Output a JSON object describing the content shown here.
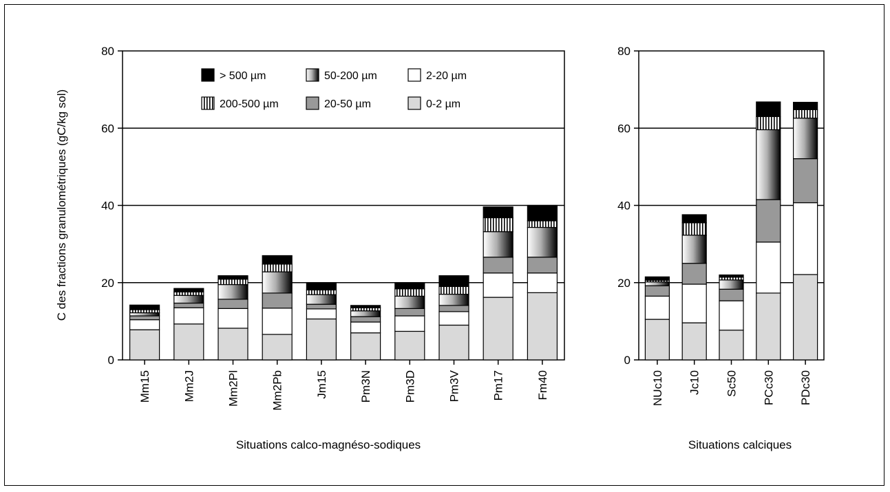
{
  "chart_data": [
    {
      "type": "bar",
      "stacked": true,
      "ylabel": "C des fractions granulométriques (gC/kg sol)",
      "xlabel": "Situations calco-magnéso-sodiques",
      "ylim": [
        0,
        80
      ],
      "yticks": [
        "0",
        "20",
        "40",
        "60",
        "80"
      ],
      "grid": "horizontal",
      "legend_position": "top-center",
      "categories": [
        "Mm15",
        "Mm2J",
        "Mm2Pl",
        "Mm2Pb",
        "Jm15",
        "Pm3N",
        "Pm3D",
        "Pm3V",
        "Pm17",
        "Fm40"
      ],
      "series": [
        {
          "name": "0-2 µm",
          "values": [
            7.8,
            9.3,
            8.2,
            6.6,
            10.6,
            7.0,
            7.4,
            9.0,
            16.2,
            17.4
          ]
        },
        {
          "name": "2-20 µm",
          "values": [
            2.6,
            4.2,
            5.1,
            6.8,
            2.6,
            2.8,
            4.0,
            3.5,
            6.3,
            5.1
          ]
        },
        {
          "name": "20-50 µm",
          "values": [
            1.0,
            1.2,
            2.4,
            3.9,
            1.2,
            1.4,
            1.9,
            1.6,
            4.1,
            4.1
          ]
        },
        {
          "name": "50-200 µm",
          "values": [
            0.8,
            2.0,
            3.8,
            5.5,
            2.5,
            1.5,
            3.2,
            2.9,
            6.6,
            7.7
          ]
        },
        {
          "name": "200-500 µm",
          "values": [
            0.8,
            0.9,
            1.4,
            2.0,
            1.2,
            0.8,
            1.9,
            2.0,
            3.6,
            1.7
          ]
        },
        {
          "name": "> 500 µm",
          "values": [
            1.2,
            0.9,
            0.9,
            2.2,
            1.8,
            0.6,
            1.4,
            2.8,
            2.8,
            4.0
          ]
        }
      ]
    },
    {
      "type": "bar",
      "stacked": true,
      "xlabel": "Situations calciques",
      "ylim": [
        0,
        80
      ],
      "yticks": [
        "0",
        "20",
        "40",
        "60",
        "80"
      ],
      "grid": "horizontal",
      "categories": [
        "NUc10",
        "Jc10",
        "Sc50",
        "PCc30",
        "PDc30"
      ],
      "series": [
        {
          "name": "0-2 µm",
          "values": [
            10.5,
            9.6,
            7.7,
            17.3,
            22.1
          ]
        },
        {
          "name": "2-20 µm",
          "values": [
            6.0,
            10.0,
            7.6,
            13.2,
            18.6
          ]
        },
        {
          "name": "20-50 µm",
          "values": [
            2.7,
            5.4,
            3.0,
            11.0,
            11.4
          ]
        },
        {
          "name": "50-200 µm",
          "values": [
            1.0,
            7.3,
            2.4,
            18.1,
            10.5
          ]
        },
        {
          "name": "200-500 µm",
          "values": [
            0.4,
            3.2,
            0.7,
            3.4,
            2.2
          ]
        },
        {
          "name": "> 500 µm",
          "values": [
            0.9,
            2.1,
            0.6,
            3.8,
            1.9
          ]
        }
      ]
    }
  ],
  "legend": {
    "items": [
      "> 500 µm",
      "50-200 µm",
      "2-20 µm",
      "200-500 µm",
      "20-50 µm",
      "0-2 µm"
    ]
  },
  "colors": {
    "0-2 µm": "#d9d9d9",
    "2-20 µm": "#ffffff",
    "20-50 µm": "#999999",
    "50-200 µm": "gradient white-to-black",
    "200-500 µm": "vertical stripes",
    "> 500 µm": "#000000"
  }
}
